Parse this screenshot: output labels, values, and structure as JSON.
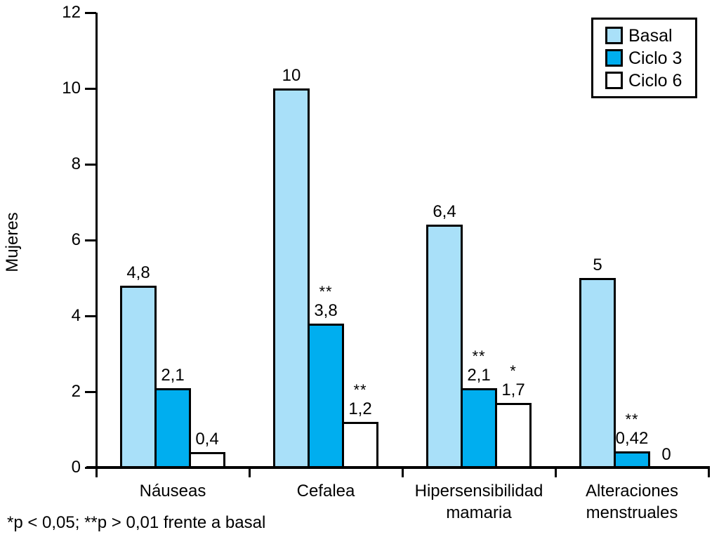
{
  "chart_data": {
    "type": "bar",
    "title": "",
    "xlabel": "",
    "ylabel": "Mujeres",
    "ylim": [
      0,
      12
    ],
    "yticks": [
      0,
      2,
      4,
      6,
      8,
      10,
      12
    ],
    "grid": false,
    "legend_position": "top-right",
    "categories": [
      "Náuseas",
      "Cefalea",
      "Hipersensibilidad\nmamaria",
      "Alteraciones\nmenstruales"
    ],
    "series": [
      {
        "name": "Basal",
        "color": "#a9e0f9",
        "values": [
          4.8,
          10,
          6.4,
          5
        ],
        "value_labels": [
          "4,8",
          "10",
          "6,4",
          "5"
        ],
        "significance": [
          "",
          "",
          "",
          ""
        ]
      },
      {
        "name": "Ciclo 3",
        "color": "#00aeef",
        "values": [
          2.1,
          3.8,
          2.1,
          0.42
        ],
        "value_labels": [
          "2,1",
          "3,8",
          "2,1",
          "0,42"
        ],
        "significance": [
          "",
          "**",
          "**",
          "**"
        ]
      },
      {
        "name": "Ciclo 6",
        "color": "#ffffff",
        "values": [
          0.4,
          1.2,
          1.7,
          0
        ],
        "value_labels": [
          "0,4",
          "1,2",
          "1,7",
          "0"
        ],
        "significance": [
          "",
          "**",
          "*",
          ""
        ]
      }
    ]
  },
  "footnote": "*p < 0,05; **p > 0,01 frente a basal",
  "colors": {
    "axis": "#000000",
    "bar_border": "#000000",
    "background": "#ffffff"
  }
}
